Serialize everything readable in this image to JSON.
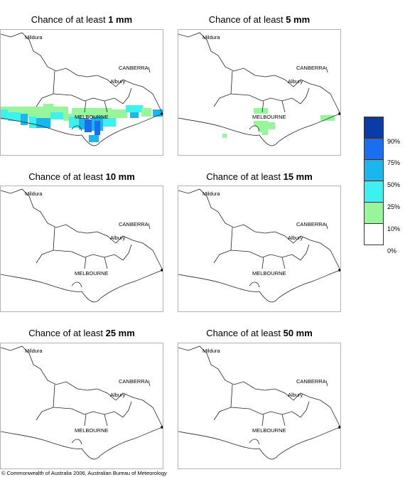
{
  "title_prefix": "Chance of at least",
  "panels": [
    {
      "amount": "1 mm"
    },
    {
      "amount": "5 mm"
    },
    {
      "amount": "10 mm"
    },
    {
      "amount": "15 mm"
    },
    {
      "amount": "25 mm"
    },
    {
      "amount": "50 mm"
    }
  ],
  "places": {
    "mildura": "Mildura",
    "canberra": "CANBERRA",
    "albury": "Albury",
    "melbourne": "MELBOURNE"
  },
  "legend": {
    "thresholds": [
      "90%",
      "75%",
      "50%",
      "25%",
      "10%",
      "0%"
    ],
    "colors": [
      "#0a3ca8",
      "#1a6ef0",
      "#18b8ee",
      "#3cf2ee",
      "#98f69a",
      "#ffffff"
    ]
  },
  "footer": "© Commonwealth of Australia 2006, Australian Bureau of Meteorology"
}
